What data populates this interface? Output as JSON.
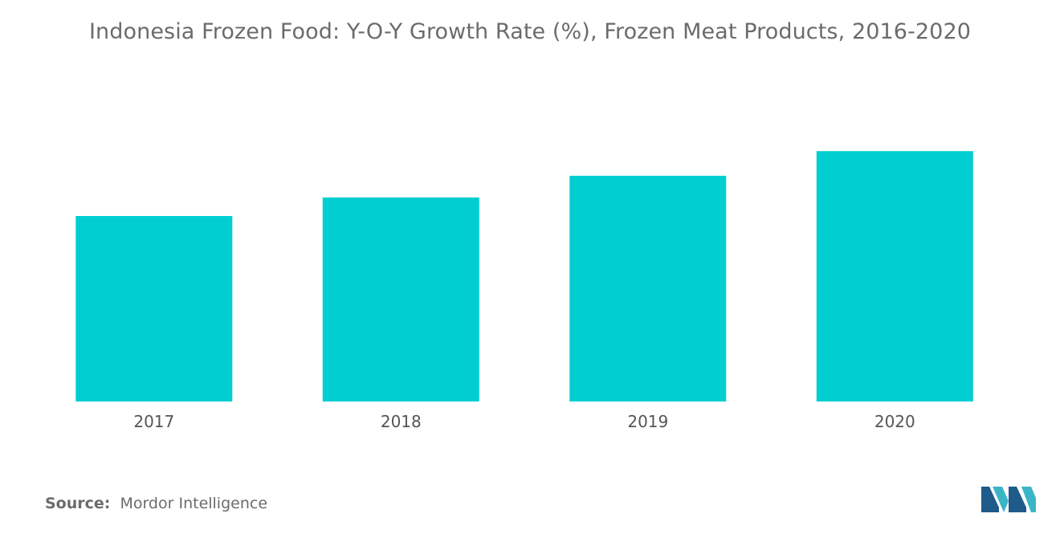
{
  "chart_data": {
    "type": "bar",
    "title": "Indonesia Frozen Food:  Y-O-Y Growth Rate (%), Frozen Meat Products, 2016-2020",
    "categories": [
      "2017",
      "2018",
      "2019",
      "2020"
    ],
    "values": [
      6.0,
      6.6,
      7.3,
      8.1
    ],
    "xlabel": "",
    "ylabel": "",
    "ylim": [
      0,
      10
    ],
    "grid": false,
    "legend": "none",
    "bar_color": "#00CED1"
  },
  "source": {
    "label": "Source:",
    "text": "Mordor Intelligence"
  },
  "logo": {
    "icon": "mordor-intelligence-logo",
    "colors": [
      "#1e5a8a",
      "#3ab5c6"
    ]
  }
}
